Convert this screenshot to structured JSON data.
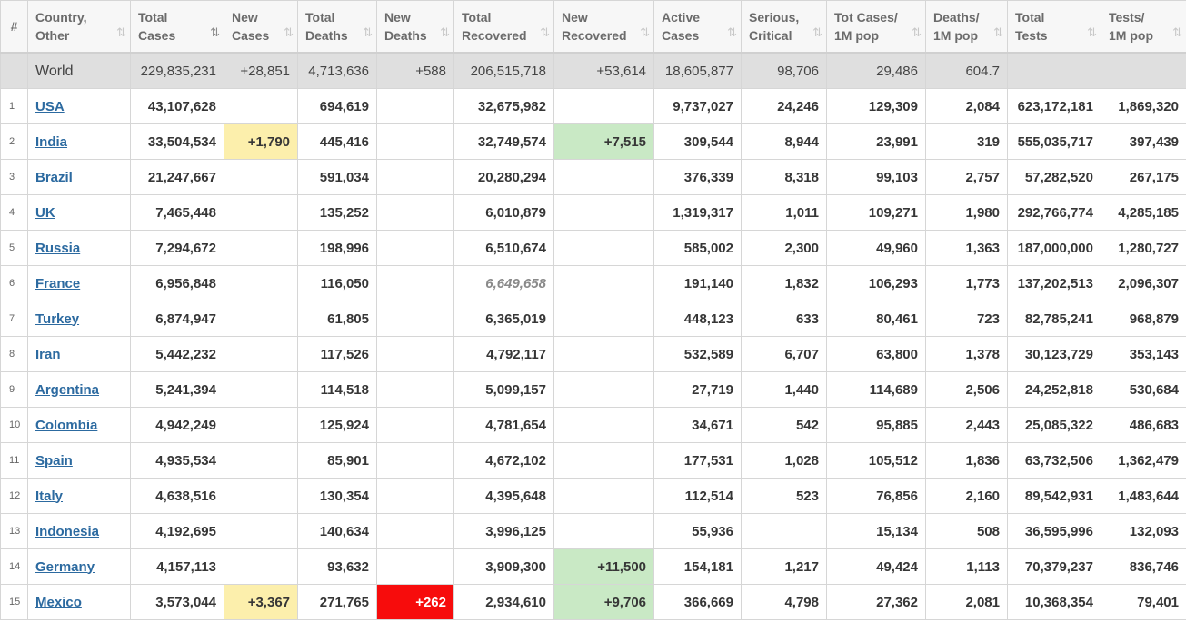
{
  "columns": [
    {
      "line1": "#",
      "line2": "",
      "sort": ""
    },
    {
      "line1": "Country,",
      "line2": "Other",
      "sort": "⇅"
    },
    {
      "line1": "Total",
      "line2": "Cases",
      "sort": "⇅"
    },
    {
      "line1": "New",
      "line2": "Cases",
      "sort": "⇅"
    },
    {
      "line1": "Total",
      "line2": "Deaths",
      "sort": "⇅"
    },
    {
      "line1": "New",
      "line2": "Deaths",
      "sort": "⇅"
    },
    {
      "line1": "Total",
      "line2": "Recovered",
      "sort": "⇅"
    },
    {
      "line1": "New",
      "line2": "Recovered",
      "sort": "⇅"
    },
    {
      "line1": "Active",
      "line2": "Cases",
      "sort": "⇅"
    },
    {
      "line1": "Serious,",
      "line2": "Critical",
      "sort": "⇅"
    },
    {
      "line1": "Tot Cases/",
      "line2": "1M pop",
      "sort": "⇅"
    },
    {
      "line1": "Deaths/",
      "line2": "1M pop",
      "sort": "⇅"
    },
    {
      "line1": "Total",
      "line2": "Tests",
      "sort": "⇅"
    },
    {
      "line1": "Tests/",
      "line2": "1M pop",
      "sort": "⇅"
    }
  ],
  "active_sort_column": 2,
  "highlight_colors": {
    "new_cases": "#fcefac",
    "new_recovered": "#c9e9c5",
    "new_deaths": "#f70c0c"
  },
  "world": {
    "rank": "",
    "country": "World",
    "total_cases": "229,835,231",
    "new_cases": "+28,851",
    "total_deaths": "4,713,636",
    "new_deaths": "+588",
    "total_recovered": "206,515,718",
    "new_recovered": "+53,614",
    "active_cases": "18,605,877",
    "serious_critical": "98,706",
    "tot_cases_1m": "29,486",
    "deaths_1m": "604.7",
    "total_tests": "",
    "tests_1m": ""
  },
  "rows": [
    {
      "rank": "1",
      "country": "USA",
      "total_cases": "43,107,628",
      "new_cases": "",
      "total_deaths": "694,619",
      "new_deaths": "",
      "total_recovered": "32,675,982",
      "new_recovered": "",
      "active_cases": "9,737,027",
      "serious_critical": "24,246",
      "tot_cases_1m": "129,309",
      "deaths_1m": "2,084",
      "total_tests": "623,172,181",
      "tests_1m": "1,869,320"
    },
    {
      "rank": "2",
      "country": "India",
      "total_cases": "33,504,534",
      "new_cases": "+1,790",
      "total_deaths": "445,416",
      "new_deaths": "",
      "total_recovered": "32,749,574",
      "new_recovered": "+7,515",
      "active_cases": "309,544",
      "serious_critical": "8,944",
      "tot_cases_1m": "23,991",
      "deaths_1m": "319",
      "total_tests": "555,035,717",
      "tests_1m": "397,439"
    },
    {
      "rank": "3",
      "country": "Brazil",
      "total_cases": "21,247,667",
      "new_cases": "",
      "total_deaths": "591,034",
      "new_deaths": "",
      "total_recovered": "20,280,294",
      "new_recovered": "",
      "active_cases": "376,339",
      "serious_critical": "8,318",
      "tot_cases_1m": "99,103",
      "deaths_1m": "2,757",
      "total_tests": "57,282,520",
      "tests_1m": "267,175"
    },
    {
      "rank": "4",
      "country": "UK",
      "total_cases": "7,465,448",
      "new_cases": "",
      "total_deaths": "135,252",
      "new_deaths": "",
      "total_recovered": "6,010,879",
      "new_recovered": "",
      "active_cases": "1,319,317",
      "serious_critical": "1,011",
      "tot_cases_1m": "109,271",
      "deaths_1m": "1,980",
      "total_tests": "292,766,774",
      "tests_1m": "4,285,185"
    },
    {
      "rank": "5",
      "country": "Russia",
      "total_cases": "7,294,672",
      "new_cases": "",
      "total_deaths": "198,996",
      "new_deaths": "",
      "total_recovered": "6,510,674",
      "new_recovered": "",
      "active_cases": "585,002",
      "serious_critical": "2,300",
      "tot_cases_1m": "49,960",
      "deaths_1m": "1,363",
      "total_tests": "187,000,000",
      "tests_1m": "1,280,727"
    },
    {
      "rank": "6",
      "country": "France",
      "total_cases": "6,956,848",
      "new_cases": "",
      "total_deaths": "116,050",
      "new_deaths": "",
      "total_recovered": "6,649,658",
      "new_recovered": "",
      "active_cases": "191,140",
      "serious_critical": "1,832",
      "tot_cases_1m": "106,293",
      "deaths_1m": "1,773",
      "total_tests": "137,202,513",
      "tests_1m": "2,096,307"
    },
    {
      "rank": "7",
      "country": "Turkey",
      "total_cases": "6,874,947",
      "new_cases": "",
      "total_deaths": "61,805",
      "new_deaths": "",
      "total_recovered": "6,365,019",
      "new_recovered": "",
      "active_cases": "448,123",
      "serious_critical": "633",
      "tot_cases_1m": "80,461",
      "deaths_1m": "723",
      "total_tests": "82,785,241",
      "tests_1m": "968,879"
    },
    {
      "rank": "8",
      "country": "Iran",
      "total_cases": "5,442,232",
      "new_cases": "",
      "total_deaths": "117,526",
      "new_deaths": "",
      "total_recovered": "4,792,117",
      "new_recovered": "",
      "active_cases": "532,589",
      "serious_critical": "6,707",
      "tot_cases_1m": "63,800",
      "deaths_1m": "1,378",
      "total_tests": "30,123,729",
      "tests_1m": "353,143"
    },
    {
      "rank": "9",
      "country": "Argentina",
      "total_cases": "5,241,394",
      "new_cases": "",
      "total_deaths": "114,518",
      "new_deaths": "",
      "total_recovered": "5,099,157",
      "new_recovered": "",
      "active_cases": "27,719",
      "serious_critical": "1,440",
      "tot_cases_1m": "114,689",
      "deaths_1m": "2,506",
      "total_tests": "24,252,818",
      "tests_1m": "530,684"
    },
    {
      "rank": "10",
      "country": "Colombia",
      "total_cases": "4,942,249",
      "new_cases": "",
      "total_deaths": "125,924",
      "new_deaths": "",
      "total_recovered": "4,781,654",
      "new_recovered": "",
      "active_cases": "34,671",
      "serious_critical": "542",
      "tot_cases_1m": "95,885",
      "deaths_1m": "2,443",
      "total_tests": "25,085,322",
      "tests_1m": "486,683"
    },
    {
      "rank": "11",
      "country": "Spain",
      "total_cases": "4,935,534",
      "new_cases": "",
      "total_deaths": "85,901",
      "new_deaths": "",
      "total_recovered": "4,672,102",
      "new_recovered": "",
      "active_cases": "177,531",
      "serious_critical": "1,028",
      "tot_cases_1m": "105,512",
      "deaths_1m": "1,836",
      "total_tests": "63,732,506",
      "tests_1m": "1,362,479"
    },
    {
      "rank": "12",
      "country": "Italy",
      "total_cases": "4,638,516",
      "new_cases": "",
      "total_deaths": "130,354",
      "new_deaths": "",
      "total_recovered": "4,395,648",
      "new_recovered": "",
      "active_cases": "112,514",
      "serious_critical": "523",
      "tot_cases_1m": "76,856",
      "deaths_1m": "2,160",
      "total_tests": "89,542,931",
      "tests_1m": "1,483,644"
    },
    {
      "rank": "13",
      "country": "Indonesia",
      "total_cases": "4,192,695",
      "new_cases": "",
      "total_deaths": "140,634",
      "new_deaths": "",
      "total_recovered": "3,996,125",
      "new_recovered": "",
      "active_cases": "55,936",
      "serious_critical": "",
      "tot_cases_1m": "15,134",
      "deaths_1m": "508",
      "total_tests": "36,595,996",
      "tests_1m": "132,093"
    },
    {
      "rank": "14",
      "country": "Germany",
      "total_cases": "4,157,113",
      "new_cases": "",
      "total_deaths": "93,632",
      "new_deaths": "",
      "total_recovered": "3,909,300",
      "new_recovered": "+11,500",
      "active_cases": "154,181",
      "serious_critical": "1,217",
      "tot_cases_1m": "49,424",
      "deaths_1m": "1,113",
      "total_tests": "70,379,237",
      "tests_1m": "836,746"
    },
    {
      "rank": "15",
      "country": "Mexico",
      "total_cases": "3,573,044",
      "new_cases": "+3,367",
      "total_deaths": "271,765",
      "new_deaths": "+262",
      "total_recovered": "2,934,610",
      "new_recovered": "+9,706",
      "active_cases": "366,669",
      "serious_critical": "4,798",
      "tot_cases_1m": "27,362",
      "deaths_1m": "2,081",
      "total_tests": "10,368,354",
      "tests_1m": "79,401"
    }
  ]
}
